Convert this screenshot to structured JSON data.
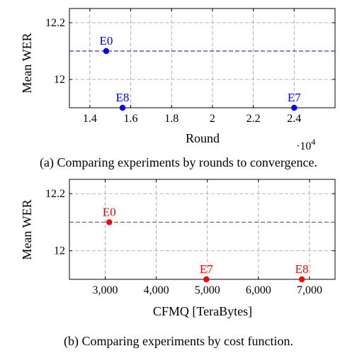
{
  "chart_data": [
    {
      "type": "scatter",
      "xlabel": "Round",
      "ylabel": "Mean WER",
      "x_multiplier_label": "·10",
      "x_multiplier_exp": "4",
      "caption": "(a) Comparing experiments by rounds to convergence.",
      "color": "#0000ff",
      "xlim": [
        1.3,
        2.6
      ],
      "ylim": [
        11.9,
        12.25
      ],
      "xticks": [
        1.4,
        1.6,
        1.8,
        2.0,
        2.2,
        2.4
      ],
      "xtick_labels": [
        "1.4",
        "1.6",
        "1.8",
        "2",
        "2.2",
        "2.4"
      ],
      "yticks": [
        12.0,
        12.2
      ],
      "ytick_labels": [
        "12",
        "12.2"
      ],
      "grid": true,
      "reference_line_y": 12.1,
      "points": [
        {
          "label": "E0",
          "x": 1.48,
          "y": 12.1
        },
        {
          "label": "E8",
          "x": 1.56,
          "y": 11.9
        },
        {
          "label": "E7",
          "x": 2.4,
          "y": 11.9
        }
      ]
    },
    {
      "type": "scatter",
      "xlabel": "CFMQ [TeraBytes]",
      "ylabel": "Mean WER",
      "caption": "(b) Comparing experiments by cost function.",
      "color": "#ff0000",
      "xlim": [
        2300,
        7500
      ],
      "ylim": [
        11.9,
        12.25
      ],
      "xticks": [
        3000,
        4000,
        5000,
        6000,
        7000
      ],
      "xtick_labels": [
        "3,000",
        "4,000",
        "5,000",
        "6,000",
        "7,000"
      ],
      "yticks": [
        12.0,
        12.2
      ],
      "ytick_labels": [
        "12",
        "12.2"
      ],
      "grid": true,
      "reference_line_y": 12.1,
      "points": [
        {
          "label": "E0",
          "x": 3080,
          "y": 12.1
        },
        {
          "label": "E7",
          "x": 4980,
          "y": 11.9
        },
        {
          "label": "E8",
          "x": 6850,
          "y": 11.9
        }
      ]
    }
  ]
}
